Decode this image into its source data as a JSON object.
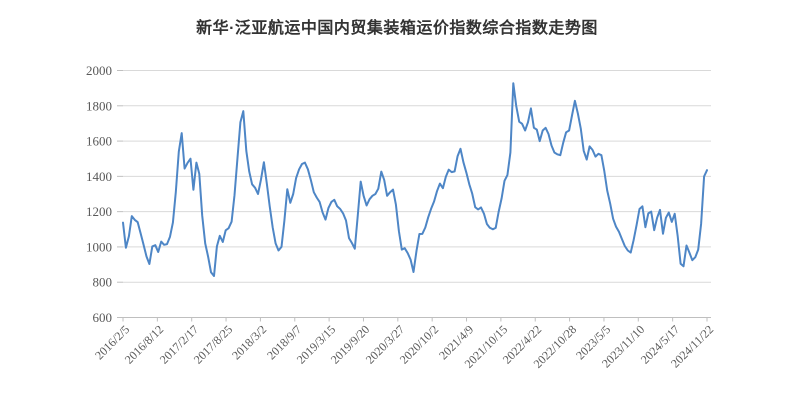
{
  "page": {
    "background": "#ffffff"
  },
  "chart_data": {
    "type": "line",
    "title": "新华·泛亚航运中国内贸集装箱运价指数综合指数走势图",
    "xlabel": "",
    "ylabel": "",
    "ylim": [
      600,
      2000
    ],
    "y_tick_step": 200,
    "y_tick_labels": [
      "2000",
      "1800",
      "1600",
      "1400",
      "1200",
      "1000",
      "800",
      "600"
    ],
    "x_tick_labels": [
      "2016/2/5",
      "2016/8/12",
      "2017/2/17",
      "2017/8/25",
      "2018/3/2",
      "2018/9/7",
      "2019/3/15",
      "2019/9/20",
      "2020/3/27",
      "2020/10/2",
      "2021/4/9",
      "2021/10/15",
      "2022/4/22",
      "2022/10/28",
      "2023/5/5",
      "2023/11/10",
      "2024/5/17",
      "2024/11/22"
    ],
    "grid": "horizontal",
    "legend": "none",
    "colors": {
      "line": "#4e86c6",
      "grid": "#d9d9d9",
      "axis": "#bfbfbf",
      "tick_text": "#595959",
      "title_text": "#333333"
    },
    "values": [
      1138,
      995,
      1060,
      1175,
      1154,
      1140,
      1078,
      1014,
      946,
      903,
      1003,
      1010,
      971,
      1030,
      1012,
      1016,
      1058,
      1138,
      1310,
      1540,
      1645,
      1444,
      1477,
      1500,
      1324,
      1478,
      1414,
      1178,
      1020,
      945,
      857,
      835,
      1003,
      1063,
      1028,
      1094,
      1106,
      1143,
      1293,
      1505,
      1707,
      1770,
      1545,
      1428,
      1355,
      1335,
      1300,
      1380,
      1480,
      1360,
      1230,
      1110,
      1020,
      980,
      1000,
      1150,
      1327,
      1250,
      1300,
      1390,
      1440,
      1470,
      1478,
      1440,
      1380,
      1310,
      1280,
      1255,
      1195,
      1155,
      1220,
      1255,
      1267,
      1230,
      1215,
      1190,
      1150,
      1050,
      1022,
      990,
      1180,
      1370,
      1290,
      1235,
      1270,
      1290,
      1300,
      1330,
      1427,
      1380,
      1290,
      1310,
      1325,
      1240,
      1090,
      985,
      993,
      965,
      928,
      858,
      978,
      1073,
      1074,
      1110,
      1168,
      1216,
      1258,
      1316,
      1359,
      1333,
      1397,
      1438,
      1424,
      1428,
      1515,
      1556,
      1480,
      1420,
      1355,
      1302,
      1225,
      1212,
      1224,
      1188,
      1130,
      1109,
      1100,
      1108,
      1198,
      1275,
      1375,
      1407,
      1535,
      1928,
      1800,
      1710,
      1698,
      1660,
      1707,
      1785,
      1675,
      1665,
      1600,
      1660,
      1675,
      1640,
      1575,
      1535,
      1525,
      1520,
      1590,
      1650,
      1660,
      1745,
      1828,
      1755,
      1670,
      1545,
      1495,
      1570,
      1550,
      1512,
      1528,
      1520,
      1430,
      1320,
      1245,
      1160,
      1115,
      1085,
      1045,
      1005,
      980,
      968,
      1038,
      1125,
      1215,
      1230,
      1112,
      1190,
      1200,
      1095,
      1165,
      1210,
      1075,
      1165,
      1195,
      1142,
      1188,
      1060,
      905,
      890,
      1008,
      968,
      925,
      942,
      985,
      1130,
      1400,
      1435
    ]
  }
}
